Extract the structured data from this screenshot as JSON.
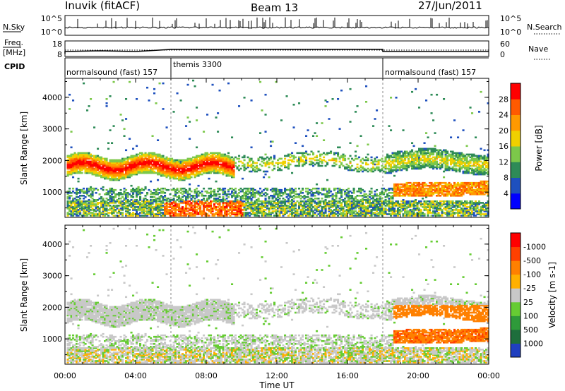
{
  "header": {
    "station": "Inuvik (fitACF)",
    "beam": "Beam 13",
    "date": "27/Jun/2011"
  },
  "top_panels": {
    "nsky_label": "N.Sky",
    "nsky_ticks": [
      "10^5",
      "10^0"
    ],
    "nsearch_label": "N.Search",
    "nsearch_ticks": [
      "10^5",
      "10^0"
    ],
    "freq_label": "Freq.",
    "freq_unit": "[MHz]",
    "freq_ticks": [
      "18",
      "8"
    ],
    "nave_label": "Nave",
    "nave_ticks": [
      "60",
      "0"
    ],
    "cpid_label": "CPID",
    "cpid_segments": [
      {
        "name": "normalsound (fast) 157",
        "start_h": 0,
        "end_h": 6
      },
      {
        "name": "themis 3300",
        "start_h": 6,
        "end_h": 18
      },
      {
        "name": "normalsound (fast) 157",
        "start_h": 18,
        "end_h": 24
      }
    ]
  },
  "chart_data": [
    {
      "type": "heatmap",
      "title": "",
      "quantity": "Power",
      "xlabel": "",
      "ylabel": "Slant Range [km]",
      "x_range_hours": [
        0,
        24
      ],
      "ylim": [
        200,
        4600
      ],
      "yticks": [
        1000,
        2000,
        3000,
        4000
      ],
      "colorbar_label": "Power [dB]",
      "colorbar_ticks": [
        "4",
        "8",
        "12",
        "16",
        "20",
        "24",
        "28"
      ],
      "colorbar_colors": [
        "#0000ff",
        "#1e50be",
        "#2e8b57",
        "#7cc84a",
        "#f0d000",
        "#ff9900",
        "#ff5a00",
        "#ff0000"
      ],
      "features": [
        {
          "desc": "band",
          "t_start": 0.2,
          "t_end": 9.5,
          "range_center": 1800,
          "value_db": 24
        },
        {
          "desc": "band",
          "t_start": 9.5,
          "t_end": 24,
          "range_center": 1900,
          "value_db": 12
        },
        {
          "desc": "band",
          "t_start": 18.5,
          "t_end": 24,
          "range_center": 1050,
          "value_db": 24
        },
        {
          "desc": "near",
          "t_start": 6,
          "t_end": 10,
          "range_center": 500,
          "value_db": 28
        }
      ]
    },
    {
      "type": "heatmap",
      "title": "",
      "quantity": "Velocity",
      "xlabel": "Time UT",
      "ylabel": "Slant Range [km]",
      "x_range_hours": [
        0,
        24
      ],
      "ylim": [
        200,
        4600
      ],
      "yticks": [
        1000,
        2000,
        3000,
        4000
      ],
      "xticks": [
        "00:00",
        "04:00",
        "08:00",
        "12:00",
        "16:00",
        "20:00",
        "00:00"
      ],
      "colorbar_label": "Velocity [m s-1]",
      "colorbar_ticks": [
        "1000",
        "500",
        "100",
        "25",
        "-25",
        "-100",
        "-500",
        "-1000"
      ],
      "colorbar_colors": [
        "#2040c0",
        "#1e6e3c",
        "#2e9a3a",
        "#66cc33",
        "#c8c8c8",
        "#ffb000",
        "#ff8000",
        "#ff4000",
        "#ff0000"
      ],
      "features": [
        {
          "desc": "ground scatter",
          "t_start": 0.2,
          "t_end": 18,
          "range_center": 1800,
          "value_ms": 0
        },
        {
          "desc": "flow",
          "t_start": 18.5,
          "t_end": 24,
          "range_center": 1250,
          "value_ms": -300
        }
      ]
    }
  ]
}
